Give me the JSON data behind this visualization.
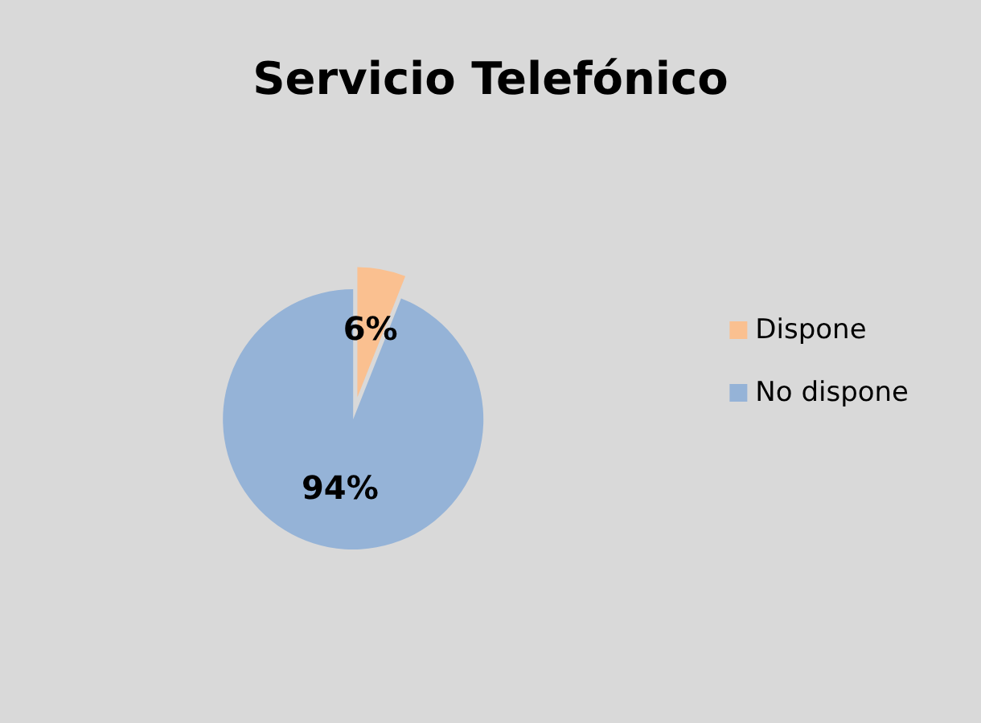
{
  "chart_data": {
    "type": "pie",
    "title": "Servicio Telefónico",
    "categories": [
      "Dispone",
      "No dispone"
    ],
    "values": [
      6,
      94
    ],
    "colors": [
      "#fac090",
      "#95b3d7"
    ],
    "value_labels": [
      "6%",
      "94%"
    ],
    "legend": "right"
  }
}
